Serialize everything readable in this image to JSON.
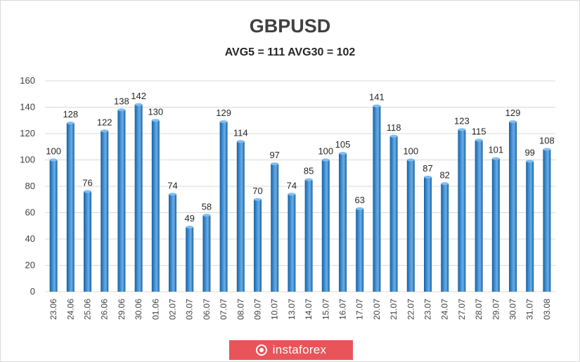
{
  "chart_data": {
    "type": "bar",
    "title": "GBPUSD",
    "subtitle": "AVG5 = 111 AVG30 = 102",
    "categories": [
      "23.06",
      "24.06",
      "25.06",
      "26.06",
      "29.06",
      "30.06",
      "01.06",
      "02.07",
      "03.07",
      "06.07",
      "07.07",
      "08.07",
      "09.07",
      "10.07",
      "13.07",
      "14.07",
      "15.07",
      "16.07",
      "17.07",
      "20.07",
      "21.07",
      "22.07",
      "23.07",
      "24.07",
      "27.07",
      "28.07",
      "29.07",
      "30.07",
      "31.07",
      "03.08"
    ],
    "values": [
      100,
      128,
      76,
      122,
      138,
      142,
      130,
      74,
      49,
      58,
      129,
      114,
      70,
      97,
      74,
      85,
      100,
      105,
      63,
      141,
      118,
      100,
      87,
      82,
      123,
      115,
      101,
      129,
      99,
      108
    ],
    "ylim": [
      0,
      160
    ],
    "yticks": [
      0,
      20,
      40,
      60,
      80,
      100,
      120,
      140,
      160
    ],
    "grid": true,
    "bar_color": "#3d8fd6",
    "bar_dark": "#1c5f99",
    "grid_color": "#d9d9d9"
  },
  "watermark": {
    "text": "instaforex",
    "color": "#e8545a"
  }
}
